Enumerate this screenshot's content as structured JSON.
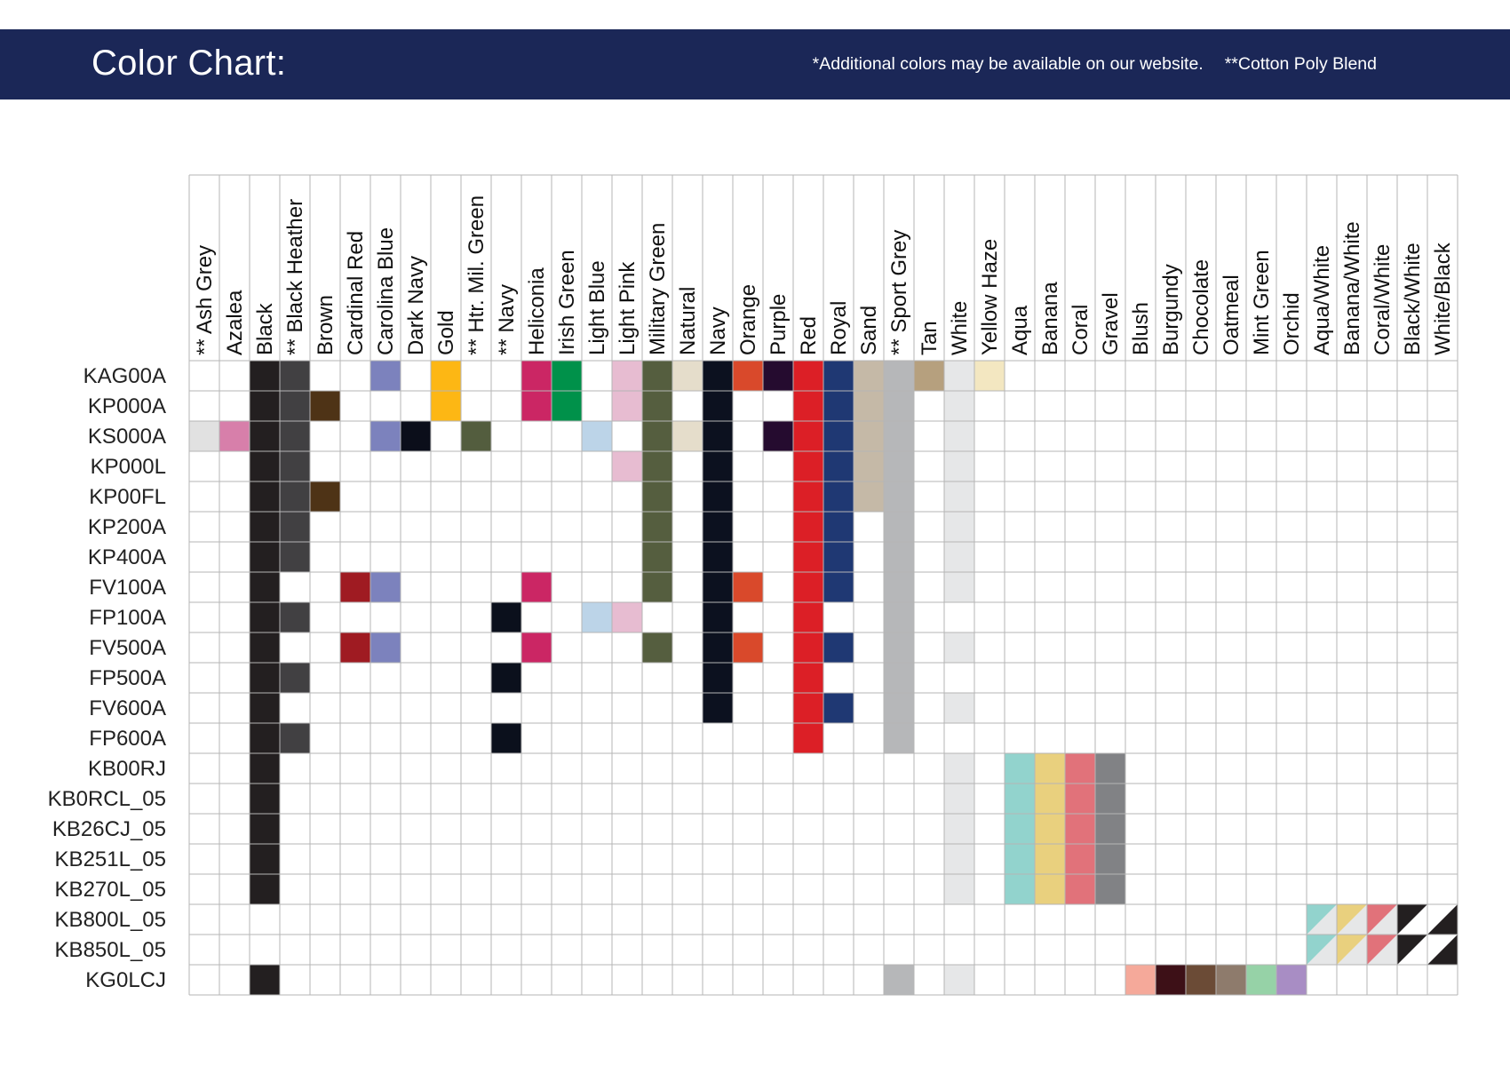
{
  "header": {
    "title": "Color Chart:",
    "note_additional": "*Additional colors may be available on our website.",
    "note_blend": "**Cotton Poly Blend"
  },
  "chart_data": {
    "type": "table",
    "columns": [
      {
        "name": "** Ash Grey",
        "color": "#e1e1e1"
      },
      {
        "name": "Azalea",
        "color": "#d77faa"
      },
      {
        "name": "Black",
        "color": "#231f20"
      },
      {
        "name": "** Black Heather",
        "color": "#414042"
      },
      {
        "name": "Brown",
        "color": "#4e3316"
      },
      {
        "name": "Cardinal Red",
        "color": "#9f1b22"
      },
      {
        "name": "Carolina Blue",
        "color": "#7c82bd"
      },
      {
        "name": "Dark Navy",
        "color": "#0b0e1a"
      },
      {
        "name": "Gold",
        "color": "#fdb714"
      },
      {
        "name": "** Htr. Mil. Green",
        "color": "#535d3e"
      },
      {
        "name": "** Navy",
        "color": "#0b101c"
      },
      {
        "name": "Heliconia",
        "color": "#cb2664"
      },
      {
        "name": "Irish Green",
        "color": "#00914a"
      },
      {
        "name": "Light Blue",
        "color": "#bcd4e8"
      },
      {
        "name": "Light Pink",
        "color": "#e7bcd1"
      },
      {
        "name": "Military Green",
        "color": "#555e3f"
      },
      {
        "name": "Natural",
        "color": "#e5ddcb"
      },
      {
        "name": "Navy",
        "color": "#0c111f"
      },
      {
        "name": "Orange",
        "color": "#d9492b"
      },
      {
        "name": "Purple",
        "color": "#250b2f"
      },
      {
        "name": "Red",
        "color": "#dc1f26"
      },
      {
        "name": "Royal",
        "color": "#1f3873"
      },
      {
        "name": "Sand",
        "color": "#c5b9a7"
      },
      {
        "name": "** Sport Grey",
        "color": "#b6b7b9"
      },
      {
        "name": "Tan",
        "color": "#b6a07e"
      },
      {
        "name": "White",
        "color": "#e6e7e8"
      },
      {
        "name": "Yellow Haze",
        "color": "#f3e7c1"
      },
      {
        "name": "Aqua",
        "color": "#92d3cd"
      },
      {
        "name": "Banana",
        "color": "#e9d07e"
      },
      {
        "name": "Coral",
        "color": "#e1727a"
      },
      {
        "name": "Gravel",
        "color": "#818285"
      },
      {
        "name": "Blush",
        "color": "#f5a99a"
      },
      {
        "name": "Burgundy",
        "color": "#3d1017"
      },
      {
        "name": "Chocolate",
        "color": "#6b4b36"
      },
      {
        "name": "Oatmeal",
        "color": "#8e7b6c"
      },
      {
        "name": "Mint Green",
        "color": "#96d2a7"
      },
      {
        "name": "Orchid",
        "color": "#a88dc4"
      },
      {
        "name": "Aqua/White",
        "color": "#92d3cd",
        "color2": "#e6e7e8"
      },
      {
        "name": "Banana/White",
        "color": "#e9d07e",
        "color2": "#e6e7e8"
      },
      {
        "name": "Coral/White",
        "color": "#e1727a",
        "color2": "#e6e7e8"
      },
      {
        "name": "Black/White",
        "color": "#231f20",
        "color2": "#ffffff"
      },
      {
        "name": "White/Black",
        "color": "#ffffff",
        "color2": "#231f20"
      }
    ],
    "rows": [
      {
        "name": "KAG00A",
        "available": [
          "Black",
          "** Black Heather",
          "Carolina Blue",
          "Gold",
          "Heliconia",
          "Irish Green",
          "Light Pink",
          "Military Green",
          "Natural",
          "Navy",
          "Orange",
          "Purple",
          "Red",
          "Royal",
          "Sand",
          "** Sport Grey",
          "Tan",
          "White",
          "Yellow Haze"
        ]
      },
      {
        "name": "KP000A",
        "available": [
          "Black",
          "** Black Heather",
          "Brown",
          "Gold",
          "Heliconia",
          "Irish Green",
          "Light Pink",
          "Military Green",
          "Navy",
          "Red",
          "Royal",
          "Sand",
          "** Sport Grey",
          "White"
        ]
      },
      {
        "name": "KS000A",
        "available": [
          "** Ash Grey",
          "Azalea",
          "Black",
          "** Black Heather",
          "Carolina Blue",
          "Dark Navy",
          "** Htr. Mil. Green",
          "Light Blue",
          "Military Green",
          "Natural",
          "Navy",
          "Purple",
          "Red",
          "Royal",
          "Sand",
          "** Sport Grey",
          "White"
        ]
      },
      {
        "name": "KP000L",
        "available": [
          "Black",
          "** Black Heather",
          "Light Pink",
          "Military Green",
          "Navy",
          "Red",
          "Royal",
          "Sand",
          "** Sport Grey",
          "White"
        ]
      },
      {
        "name": "KP00FL",
        "available": [
          "Black",
          "** Black Heather",
          "Brown",
          "Military Green",
          "Navy",
          "Red",
          "Royal",
          "Sand",
          "** Sport Grey",
          "White"
        ]
      },
      {
        "name": "KP200A",
        "available": [
          "Black",
          "** Black Heather",
          "Military Green",
          "Navy",
          "Red",
          "Royal",
          "** Sport Grey",
          "White"
        ]
      },
      {
        "name": "KP400A",
        "available": [
          "Black",
          "** Black Heather",
          "Military Green",
          "Navy",
          "Red",
          "Royal",
          "** Sport Grey",
          "White"
        ]
      },
      {
        "name": "FV100A",
        "available": [
          "Black",
          "Cardinal Red",
          "Carolina Blue",
          "Heliconia",
          "Military Green",
          "Navy",
          "Orange",
          "Red",
          "Royal",
          "** Sport Grey",
          "White"
        ]
      },
      {
        "name": "FP100A",
        "available": [
          "Black",
          "** Black Heather",
          "** Navy",
          "Light Blue",
          "Light Pink",
          "Navy",
          "Red",
          "** Sport Grey"
        ]
      },
      {
        "name": "FV500A",
        "available": [
          "Black",
          "Cardinal Red",
          "Carolina Blue",
          "Heliconia",
          "Military Green",
          "Navy",
          "Orange",
          "Red",
          "Royal",
          "** Sport Grey",
          "White"
        ]
      },
      {
        "name": "FP500A",
        "available": [
          "Black",
          "** Black Heather",
          "** Navy",
          "Navy",
          "Red",
          "** Sport Grey"
        ]
      },
      {
        "name": "FV600A",
        "available": [
          "Black",
          "Navy",
          "Red",
          "Royal",
          "** Sport Grey",
          "White"
        ]
      },
      {
        "name": "FP600A",
        "available": [
          "Black",
          "** Black Heather",
          "** Navy",
          "Red",
          "** Sport Grey"
        ]
      },
      {
        "name": "KB00RJ",
        "available": [
          "Black",
          "White",
          "Aqua",
          "Banana",
          "Coral",
          "Gravel"
        ]
      },
      {
        "name": "KB0RCL_05",
        "available": [
          "Black",
          "White",
          "Aqua",
          "Banana",
          "Coral",
          "Gravel"
        ]
      },
      {
        "name": "KB26CJ_05",
        "available": [
          "Black",
          "White",
          "Aqua",
          "Banana",
          "Coral",
          "Gravel"
        ]
      },
      {
        "name": "KB251L_05",
        "available": [
          "Black",
          "White",
          "Aqua",
          "Banana",
          "Coral",
          "Gravel"
        ]
      },
      {
        "name": "KB270L_05",
        "available": [
          "Black",
          "White",
          "Aqua",
          "Banana",
          "Coral",
          "Gravel"
        ]
      },
      {
        "name": "KB800L_05",
        "available": [
          "Aqua/White",
          "Banana/White",
          "Coral/White",
          "Black/White",
          "White/Black"
        ]
      },
      {
        "name": "KB850L_05",
        "available": [
          "Aqua/White",
          "Banana/White",
          "Coral/White",
          "Black/White",
          "White/Black"
        ]
      },
      {
        "name": "KG0LCJ",
        "available": [
          "Black",
          "** Sport Grey",
          "White",
          "Blush",
          "Burgundy",
          "Chocolate",
          "Oatmeal",
          "Mint Green",
          "Orchid"
        ]
      }
    ]
  }
}
